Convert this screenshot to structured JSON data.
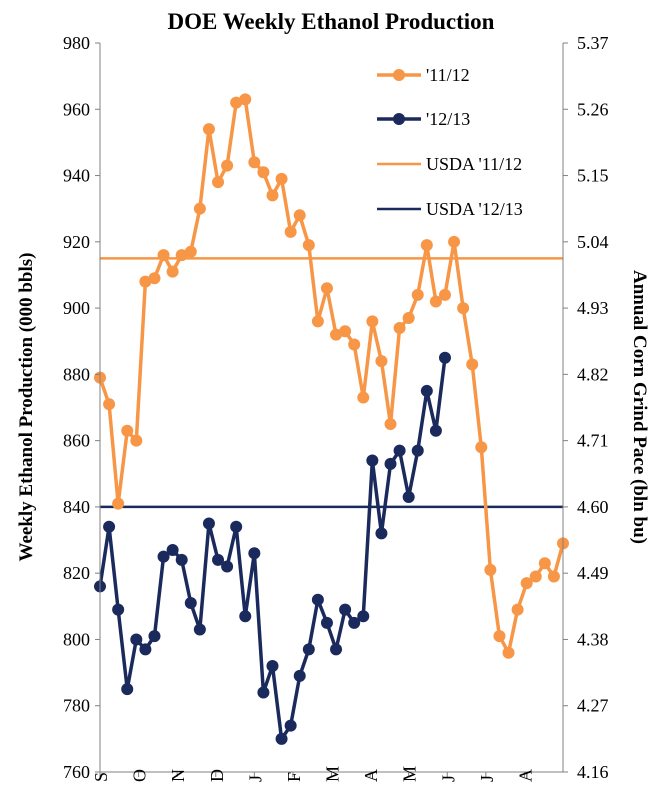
{
  "chart_data": {
    "type": "line",
    "title": "DOE Weekly Ethanol Production",
    "ylabel": "Weekly Ethanol Production (000 bbls)",
    "y2label": "Annual Corn Grind Pace (bln bu)",
    "ylim": [
      760,
      980
    ],
    "yticks": [
      760,
      780,
      800,
      820,
      840,
      860,
      880,
      900,
      920,
      940,
      960,
      980
    ],
    "y2ticks": [
      "4.16",
      "4.27",
      "4.38",
      "4.49",
      "4.60",
      "4.71",
      "4.82",
      "4.93",
      "5.04",
      "5.15",
      "5.26",
      "5.37"
    ],
    "month_labels": [
      "S",
      "O",
      "N",
      "D",
      "J",
      "F",
      "M",
      "A",
      "M",
      "J",
      "J",
      "A"
    ],
    "week_count": 52,
    "grid": false,
    "legend_position": "top-right",
    "series": [
      {
        "name": "'11/12",
        "color": "#F79646",
        "values": [
          879,
          871,
          841,
          863,
          860,
          908,
          909,
          916,
          911,
          916,
          917,
          930,
          954,
          938,
          943,
          962,
          963,
          944,
          941,
          934,
          939,
          923,
          928,
          919,
          896,
          906,
          892,
          893,
          889,
          873,
          896,
          884,
          865,
          894,
          897,
          904,
          919,
          902,
          904,
          920,
          900,
          883,
          858,
          821,
          801,
          796,
          809,
          817,
          819,
          823,
          819,
          829
        ]
      },
      {
        "name": "'12/13",
        "color": "#1B2A5C",
        "values": [
          816,
          834,
          809,
          785,
          800,
          797,
          801,
          825,
          827,
          824,
          811,
          803,
          835,
          824,
          822,
          834,
          807,
          826,
          784,
          792,
          770,
          774,
          789,
          797,
          812,
          805,
          797,
          809,
          805,
          807,
          854,
          832,
          853,
          857,
          843,
          857,
          875,
          863,
          885
        ]
      }
    ],
    "reference_lines": [
      {
        "name": "USDA '11/12",
        "value": 915,
        "color": "#F79646"
      },
      {
        "name": "USDA '12/13",
        "value": 840,
        "color": "#1B2A5C"
      }
    ]
  }
}
